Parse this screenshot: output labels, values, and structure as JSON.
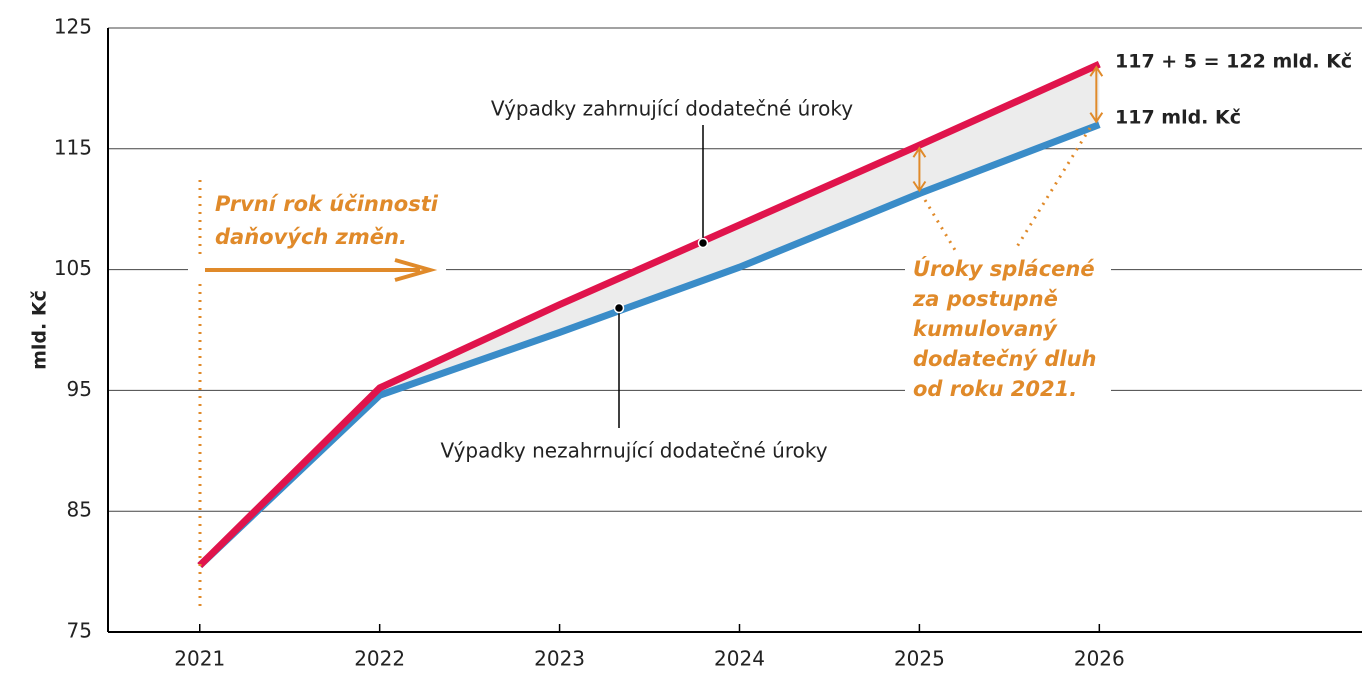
{
  "chart_data": {
    "type": "line",
    "y_label": "mld. Kč",
    "x": [
      2021,
      2022,
      2023,
      2024,
      2025,
      2026
    ],
    "series": [
      {
        "name": "Výpadky zahrnující dodatečné úroky",
        "color": "#e0144c",
        "values": [
          80.5,
          95.2,
          102.1,
          108.7,
          115.3,
          122
        ]
      },
      {
        "name": "Výpadky nezahrnující dodatečné úroky",
        "color": "#3a8cc8",
        "values": [
          80.5,
          94.6,
          99.8,
          105.2,
          111.3,
          117
        ]
      }
    ],
    "xlim": [
      2020.49,
      2027.46
    ],
    "xticks": [
      2021,
      2022,
      2023,
      2024,
      2025,
      2026
    ],
    "ylim": [
      75,
      125
    ],
    "yticks": [
      75,
      85,
      95,
      105,
      115,
      125
    ],
    "grid": true,
    "annotations": {
      "first_year": [
        "První rok účinnosti",
        "daňových změn."
      ],
      "interest": [
        "Úroky splácené",
        "za postupně",
        "kumulovaný",
        "dodatečný dluh",
        "od roku 2021."
      ],
      "total_label": "117 + 5 = 122 mld. Kč",
      "base_label": "117 mld. Kč"
    }
  }
}
